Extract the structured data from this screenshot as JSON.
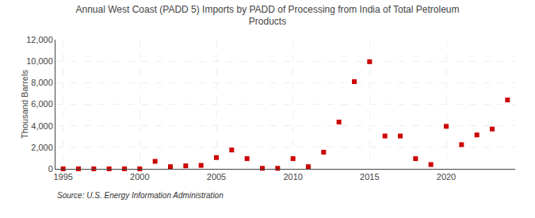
{
  "chart_data": {
    "type": "scatter",
    "title": "Annual West Coast (PADD 5) Imports by PADD of Processing from India of Total Petroleum\nProducts",
    "ylabel": "Thousand Barrels",
    "annotations": [
      "Source: U.S. Energy Information Administration"
    ],
    "x": [
      1995,
      1996,
      1997,
      1998,
      1999,
      2000,
      2001,
      2002,
      2003,
      2004,
      2005,
      2006,
      2007,
      2008,
      2009,
      2010,
      2011,
      2012,
      2013,
      2014,
      2015,
      2016,
      2017,
      2018,
      2019,
      2020,
      2021,
      2022,
      2023,
      2024
    ],
    "values": [
      0,
      0,
      0,
      0,
      0,
      0,
      700,
      200,
      280,
      320,
      1050,
      1750,
      950,
      50,
      50,
      950,
      200,
      1550,
      4350,
      8100,
      9950,
      3050,
      3050,
      950,
      400,
      3950,
      2250,
      3150,
      3700,
      6400
    ],
    "color": "#cc0000",
    "marker": "square",
    "xlim": [
      1994.5,
      2024.5
    ],
    "xticks": [
      1995,
      2000,
      2005,
      2010,
      2015,
      2020
    ],
    "ylim": [
      0,
      12000
    ],
    "yticks": [
      0,
      {
        "value": 2000,
        "label": "2,000"
      },
      {
        "value": 4000,
        "label": "4,000"
      },
      {
        "value": 6000,
        "label": "6,000"
      },
      {
        "value": 8000,
        "label": "8,000"
      },
      {
        "value": 10000,
        "label": "10,000"
      },
      {
        "value": 12000,
        "label": "12,000"
      }
    ],
    "grid": true
  }
}
